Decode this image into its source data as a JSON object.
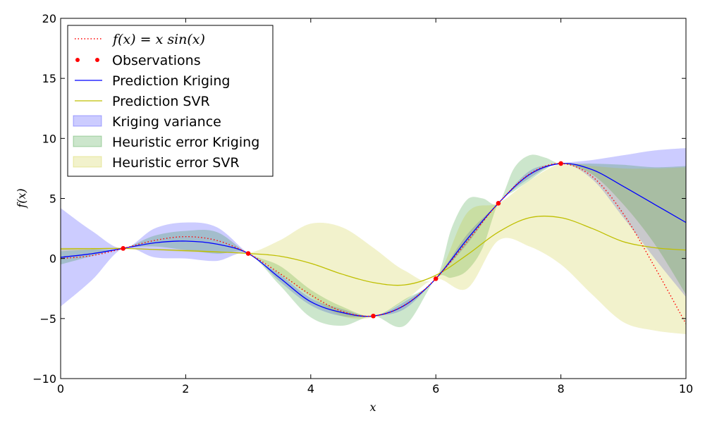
{
  "chart_data": {
    "type": "line",
    "xlabel": "x",
    "ylabel": "f(x)",
    "xlim": [
      0,
      10
    ],
    "ylim": [
      -10,
      20
    ],
    "x_ticks": [
      "0",
      "2",
      "4",
      "6",
      "8",
      "10"
    ],
    "y_ticks": [
      "−10",
      "−5",
      "0",
      "5",
      "10",
      "15",
      "20"
    ],
    "legend_position": "upper-left",
    "colors": {
      "true_function": "#ff0000",
      "observations": "#ff0000",
      "kriging": "#0000ff",
      "svr": "#bfbf00",
      "kriging_variance": "#0000ff",
      "heuristic_kriging": "#008000",
      "heuristic_svr": "#bfbf00"
    },
    "observations": {
      "x": [
        1,
        3,
        5,
        6,
        7,
        8
      ],
      "y": [
        0.84,
        0.42,
        -4.79,
        -1.68,
        4.6,
        7.91
      ]
    },
    "kriging_prediction": {
      "x": [
        0,
        0.5,
        1,
        1.5,
        2,
        2.5,
        3,
        3.5,
        4,
        4.5,
        5,
        5.5,
        6,
        6.5,
        7,
        7.5,
        8,
        8.5,
        9,
        9.5,
        10
      ],
      "y": [
        0.1,
        0.4,
        0.84,
        1.3,
        1.45,
        1.2,
        0.42,
        -1.6,
        -3.6,
        -4.5,
        -4.79,
        -3.9,
        -1.68,
        1.6,
        4.6,
        7.0,
        7.91,
        7.4,
        6.0,
        4.5,
        3.0
      ]
    },
    "svr_prediction": {
      "x": [
        0,
        0.5,
        1,
        1.5,
        2,
        2.5,
        3,
        3.5,
        4,
        4.5,
        5,
        5.5,
        6,
        6.5,
        7,
        7.5,
        8,
        8.5,
        9,
        9.5,
        10
      ],
      "y": [
        0.8,
        0.82,
        0.84,
        0.75,
        0.65,
        0.55,
        0.42,
        0.2,
        -0.4,
        -1.3,
        -2.0,
        -2.2,
        -1.4,
        0.3,
        2.2,
        3.4,
        3.4,
        2.5,
        1.4,
        0.9,
        0.7
      ]
    },
    "kriging_variance": {
      "x": [
        0,
        0.5,
        1,
        1.5,
        2,
        2.5,
        3,
        3.5,
        4,
        4.5,
        5,
        5.5,
        6,
        6.5,
        7,
        7.5,
        8,
        8.5,
        9,
        9.5,
        10
      ],
      "upper": [
        4.2,
        2.3,
        0.84,
        2.5,
        3.0,
        2.6,
        0.42,
        -1.3,
        -3.3,
        -4.2,
        -4.79,
        -3.6,
        -1.68,
        2.0,
        4.6,
        7.3,
        7.91,
        8.2,
        8.6,
        9.0,
        9.2
      ],
      "lower": [
        -4.0,
        -1.8,
        0.84,
        0.1,
        0.0,
        -0.2,
        0.42,
        -1.9,
        -3.9,
        -4.8,
        -4.79,
        -4.2,
        -1.68,
        1.2,
        4.6,
        6.7,
        7.91,
        6.6,
        3.4,
        0.0,
        -3.2
      ]
    },
    "heuristic_error_kriging": {
      "x": [
        0,
        0.5,
        1,
        1.5,
        2,
        2.5,
        3,
        3.5,
        4,
        4.5,
        5,
        5.5,
        6,
        6.25,
        6.5,
        6.75,
        7,
        7.25,
        7.5,
        7.75,
        8,
        8.5,
        9,
        9.5,
        10
      ],
      "upper": [
        0.6,
        0.75,
        0.84,
        1.9,
        2.3,
        2.2,
        0.42,
        -0.6,
        -2.6,
        -4.0,
        -4.79,
        -3.4,
        -1.68,
        2.5,
        4.9,
        5.0,
        4.6,
        7.5,
        8.6,
        8.4,
        7.91,
        7.9,
        7.8,
        7.6,
        7.7
      ],
      "lower": [
        -0.5,
        0.2,
        0.84,
        1.0,
        0.7,
        0.4,
        0.42,
        -2.2,
        -4.9,
        -5.6,
        -4.79,
        -5.6,
        -1.68,
        -1.6,
        -1.0,
        0.9,
        4.6,
        5.6,
        6.5,
        7.4,
        7.91,
        7.0,
        4.5,
        1.2,
        -3.0
      ]
    },
    "heuristic_error_svr": {
      "x": [
        0,
        0.5,
        1,
        1.5,
        2,
        2.5,
        3,
        3.5,
        4,
        4.5,
        5,
        5.5,
        6,
        6.5,
        7,
        7.5,
        8,
        8.5,
        9,
        9.5,
        10
      ],
      "upper": [
        0.9,
        0.88,
        0.85,
        0.8,
        0.75,
        0.6,
        0.45,
        1.5,
        2.9,
        2.6,
        0.9,
        -1.0,
        -1.6,
        3.8,
        4.6,
        6.5,
        7.9,
        7.7,
        7.5,
        7.5,
        7.6
      ],
      "lower": [
        0.6,
        0.7,
        0.83,
        0.7,
        0.55,
        0.5,
        0.4,
        -1.3,
        -3.2,
        -4.8,
        -4.9,
        -3.5,
        -1.7,
        -2.5,
        1.5,
        1.0,
        -0.5,
        -3.0,
        -5.3,
        -6.0,
        -6.3
      ]
    },
    "true_function": {
      "label": "f(x) = x sin(x)",
      "x": [
        0,
        0.5,
        1,
        1.5,
        2,
        2.5,
        3,
        3.5,
        4,
        4.5,
        5,
        5.5,
        6,
        6.5,
        7,
        7.5,
        8,
        8.5,
        9,
        9.5,
        10
      ],
      "y": [
        0,
        0.24,
        0.84,
        1.5,
        1.82,
        1.5,
        0.42,
        -1.23,
        -3.03,
        -4.4,
        -4.79,
        -3.88,
        -1.68,
        1.41,
        4.6,
        7.04,
        7.91,
        6.83,
        3.71,
        -0.71,
        -5.44
      ]
    },
    "legend": {
      "true_function_label": "f(x) = x sin(x)",
      "observations_label": "Observations",
      "kriging_label": "Prediction Kriging",
      "svr_label": "Prediction SVR",
      "kriging_variance_label": "Kriging variance",
      "heuristic_kriging_label": "Heuristic error Kriging",
      "heuristic_svr_label": "Heuristic error SVR"
    }
  }
}
